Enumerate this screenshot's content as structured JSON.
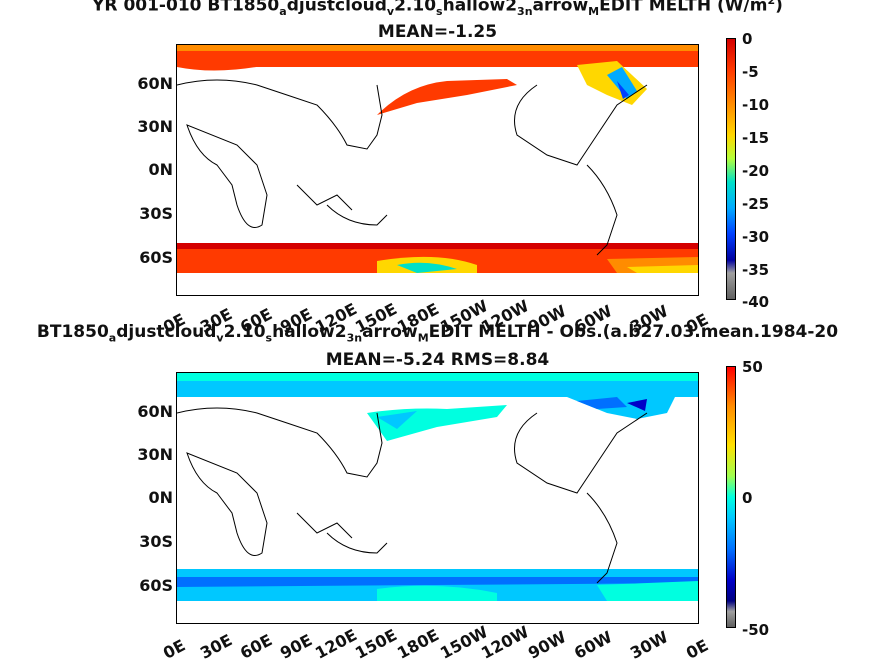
{
  "top": {
    "title_parts": [
      "YR 001-010 BT1850",
      "a",
      "djustcloud",
      "v",
      "2.10",
      "s",
      "hallow2",
      "3n",
      "arrow",
      "M",
      "EDIT  MELTH (W/m",
      "2",
      ")"
    ],
    "subtitle": "MEAN=-1.25",
    "colorbar_labels": [
      "0",
      "-5",
      "-10",
      "-15",
      "-20",
      "-25",
      "-30",
      "-35",
      "-40"
    ]
  },
  "bottom": {
    "title_parts": [
      "BT1850",
      "a",
      "djustcloud",
      "v",
      "2.10",
      "s",
      "hallow2",
      "3n",
      "arrow",
      "M",
      "EDIT MELTH - Obs.(a.b27.03.mean.1984-20"
    ],
    "subtitle": "MEAN=-5.24 RMS=8.84",
    "colorbar_labels": [
      "50",
      "0",
      "-50"
    ]
  },
  "lat_labels": [
    "60N",
    "30N",
    "0N",
    "30S",
    "60S"
  ],
  "lon_labels": [
    "0E",
    "30E",
    "60E",
    "90E",
    "120E",
    "150E",
    "180E",
    "150W",
    "120W",
    "90W",
    "60W",
    "30W",
    "0E"
  ],
  "colors": {
    "top_palette": [
      "#d40000",
      "#ff3a00",
      "#ff8c00",
      "#ffd700",
      "#b4ff3c",
      "#00e0c8",
      "#00aaff",
      "#0040ff",
      "#0000a0"
    ],
    "bottom_palette": [
      "#ff0000",
      "#ff8c00",
      "#ffe000",
      "#a0ff50",
      "#00ffe0",
      "#00c8ff",
      "#0070ff",
      "#0000c8",
      "#000080"
    ],
    "land_outline": "#000000"
  }
}
